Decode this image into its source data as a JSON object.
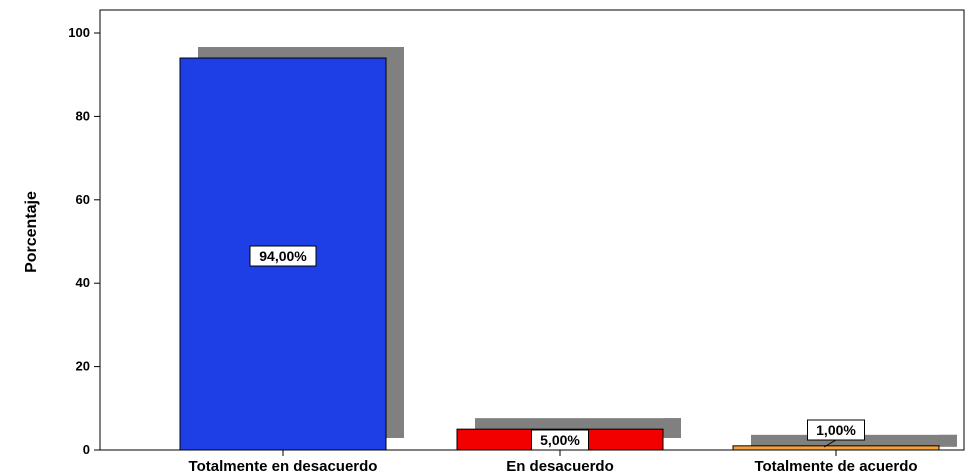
{
  "chart_data": {
    "type": "bar",
    "categories": [
      "Totalmente en desacuerdo",
      "En desacuerdo",
      "Totalmente de acuerdo"
    ],
    "values": [
      94,
      5,
      1
    ],
    "data_labels": [
      "94,00%",
      "5,00%",
      "1,00%"
    ],
    "ylabel": "Porcentaje",
    "xlabel": "",
    "ylim": [
      0,
      100
    ],
    "yticks": [
      "0",
      "20",
      "40",
      "60",
      "80",
      "100"
    ],
    "ytick_values": [
      0,
      20,
      40,
      60,
      80,
      100
    ],
    "colors": [
      "#1f3fe6",
      "#f20000",
      "#f5a23a"
    ],
    "shadow_color": "#808080",
    "grid": false,
    "legend": "none"
  }
}
